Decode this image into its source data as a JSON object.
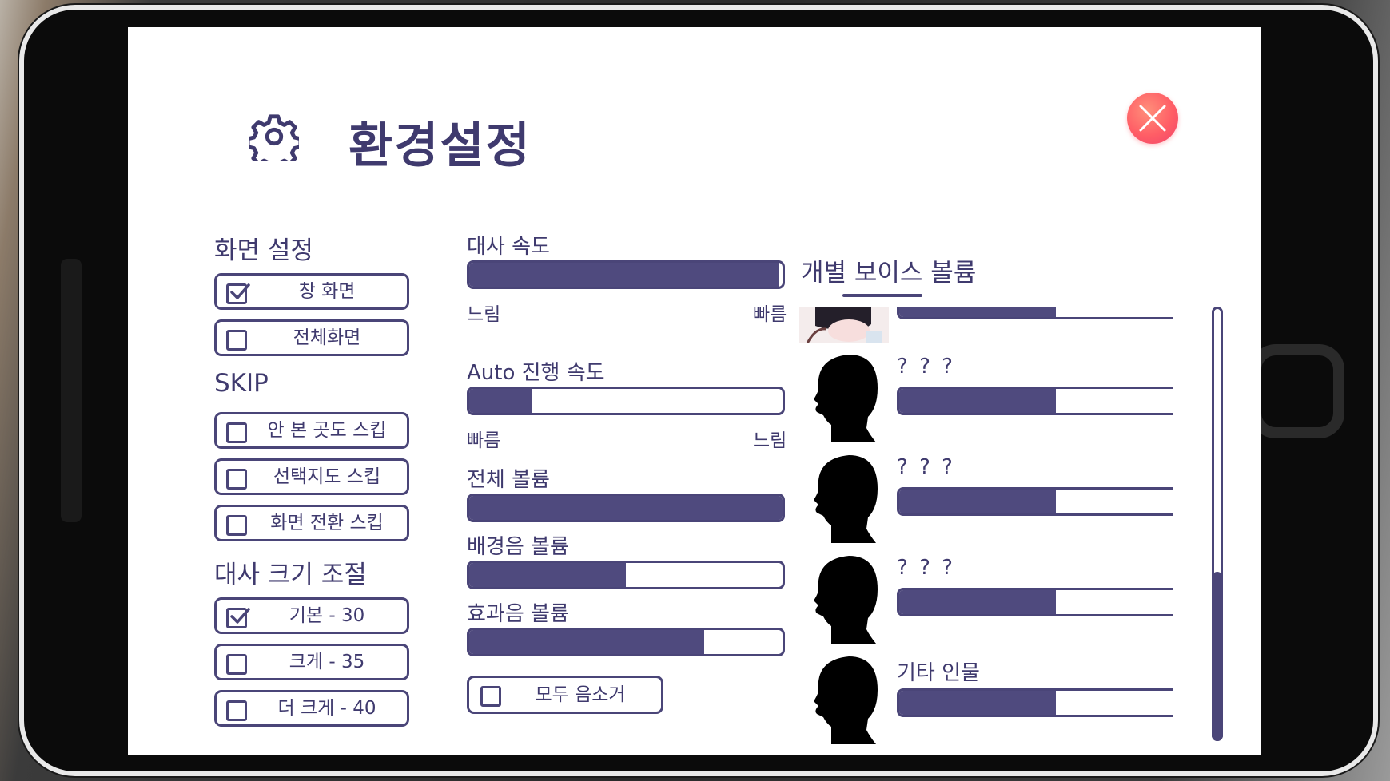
{
  "header": {
    "title": "환경설정"
  },
  "display_settings": {
    "title": "화면 설정",
    "options": [
      {
        "label": "창 화면",
        "checked": true
      },
      {
        "label": "전체화면",
        "checked": false
      }
    ]
  },
  "skip": {
    "title": "SKIP",
    "options": [
      {
        "label": "안 본 곳도 스킵",
        "checked": false
      },
      {
        "label": "선택지도 스킵",
        "checked": false
      },
      {
        "label": "화면 전환 스킵",
        "checked": false
      }
    ]
  },
  "text_size": {
    "title": "대사 크기 조절",
    "options": [
      {
        "label": "기본 - 30",
        "checked": true
      },
      {
        "label": "크게 - 35",
        "checked": false
      },
      {
        "label": "더 크게 - 40",
        "checked": false
      }
    ]
  },
  "sliders": {
    "dialogue_speed": {
      "label": "대사 속도",
      "value": 0.99,
      "left_label": "느림",
      "right_label": "빠름"
    },
    "auto_speed": {
      "label": "Auto 진행 속도",
      "value": 0.2,
      "left_label": "빠름",
      "right_label": "느림"
    },
    "master_volume": {
      "label": "전체 볼륨",
      "value": 1.0
    },
    "bgm_volume": {
      "label": "배경음 볼륨",
      "value": 0.5
    },
    "sfx_volume": {
      "label": "효과음 볼륨",
      "value": 0.75
    }
  },
  "mute_all": {
    "label": "모두 음소거",
    "checked": false
  },
  "voice_volume": {
    "title": "개별 보이스 볼륨",
    "characters": [
      {
        "name": "",
        "value": 0.5,
        "portrait": "anime-girl-portrait"
      },
      {
        "name": "? ? ?",
        "value": 0.5,
        "portrait": "silhouette-head"
      },
      {
        "name": "? ? ?",
        "value": 0.5,
        "portrait": "silhouette-head"
      },
      {
        "name": "? ? ?",
        "value": 0.5,
        "portrait": "silhouette-head"
      },
      {
        "name": "기타 인물",
        "value": 0.5,
        "portrait": "silhouette-head"
      }
    ],
    "scroll_position": 1.0
  },
  "colors": {
    "primary": "#4a4578",
    "fill": "#4f4a7e",
    "close_button": "#ff5e66"
  }
}
